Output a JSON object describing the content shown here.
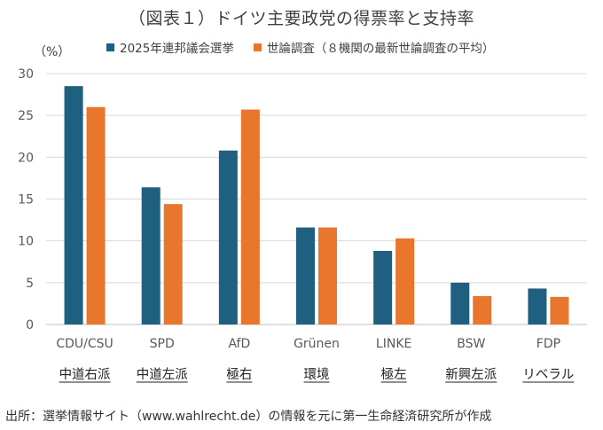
{
  "chart_data": {
    "type": "bar",
    "title": "（図表１）ドイツ主要政党の得票率と支持率",
    "ylabel": "（%）",
    "ylim": [
      0,
      30
    ],
    "yticks": [
      0,
      5,
      10,
      15,
      20,
      25,
      30
    ],
    "grid": true,
    "legend_position": "top",
    "categories": [
      "CDU/CSU",
      "SPD",
      "AfD",
      "Grünen",
      "LINKE",
      "BSW",
      "FDP"
    ],
    "category_descriptions": [
      "中道右派",
      "中道左派",
      "極右",
      "環境",
      "極左",
      "新興左派",
      "リベラル"
    ],
    "series": [
      {
        "name": "2025年連邦議会選挙",
        "color": "#1f5f7f",
        "values": [
          28.5,
          16.4,
          20.8,
          11.6,
          8.8,
          5.0,
          4.3
        ]
      },
      {
        "name": "世論調査（８機関の最新世論調査の平均）",
        "color": "#e8762d",
        "values": [
          26.0,
          14.4,
          25.7,
          11.6,
          10.3,
          3.4,
          3.3
        ]
      }
    ]
  },
  "source": "出所：選挙情報サイト（www.wahlrecht.de）の情報を元に第一生命経済研究所が作成"
}
